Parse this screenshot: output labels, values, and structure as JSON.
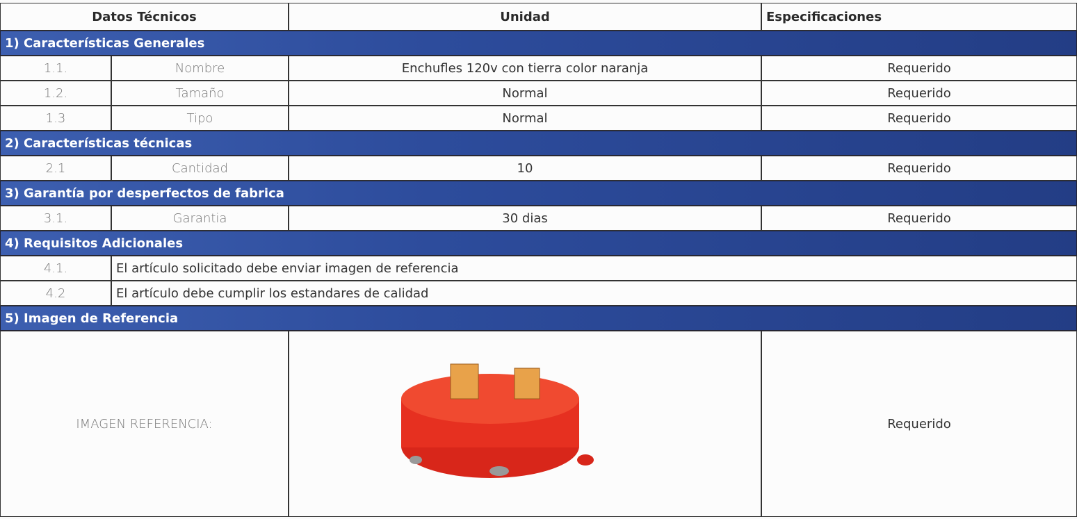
{
  "header": {
    "columns": [
      "Datos Técnicos",
      "Unidad",
      "Especificaciones"
    ]
  },
  "sections": [
    {
      "title": "1) Características Generales",
      "rows": [
        {
          "number": "1.1.",
          "name": "Nombre",
          "unit": "Enchufles 120v con tierra color naranja",
          "spec": "Requerido"
        },
        {
          "number": "1.2.",
          "name": "Tamaño",
          "unit": "Normal",
          "spec": "Requerido"
        },
        {
          "number": "1.3",
          "name": "Tipo",
          "unit": "Normal",
          "spec": "Requerido"
        }
      ]
    },
    {
      "title": "2) Características técnicas",
      "rows": [
        {
          "number": "2.1",
          "name": "Cantidad",
          "unit": "10",
          "spec": "Requerido"
        }
      ]
    },
    {
      "title": "3) Garantía por desperfectos de fabrica",
      "rows": [
        {
          "number": "3.1.",
          "name": "Garantia",
          "unit": "30 dias",
          "spec": "Requerido"
        }
      ]
    },
    {
      "title": "4) Requisitos Adicionales",
      "rows": [
        {
          "number": "4.1.",
          "text": "El artículo solicitado debe enviar imagen de referencia"
        },
        {
          "number": "4.2",
          "text": "El artículo debe cumplir los estandares de calidad"
        }
      ]
    },
    {
      "title": "5) Imagen de Referencia",
      "rows": []
    }
  ],
  "image_row": {
    "label": "IMAGEN REFERENCIA:",
    "spec": "Requerido"
  }
}
